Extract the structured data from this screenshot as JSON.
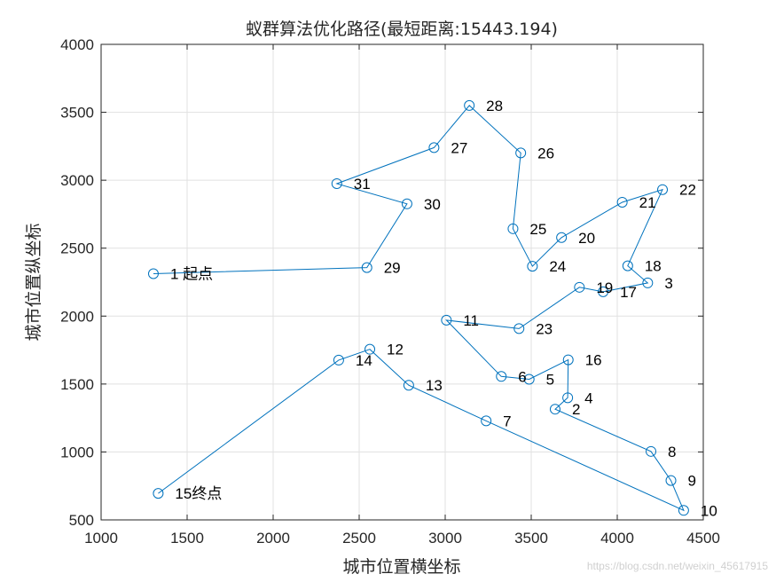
{
  "chart_data": {
    "type": "line",
    "title": "蚁群算法优化路径(最短距离:15443.194)",
    "xlabel": "城市位置横坐标",
    "ylabel": "城市位置纵坐标",
    "xlim": [
      1000,
      4500
    ],
    "ylim": [
      500,
      4000
    ],
    "xticks": [
      "1000",
      "1500",
      "2000",
      "2500",
      "3000",
      "3500",
      "4000",
      "4500"
    ],
    "yticks": [
      "500",
      "1000",
      "1500",
      "2000",
      "2500",
      "3000",
      "3500",
      "4000"
    ],
    "grid": true,
    "line_color": "#0072BD",
    "cities": [
      {
        "label": "1  起点",
        "x": 1304,
        "y": 2312
      },
      {
        "label": "2",
        "x": 3639,
        "y": 1315
      },
      {
        "label": "3",
        "x": 4177,
        "y": 2244
      },
      {
        "label": "4",
        "x": 3712,
        "y": 1399
      },
      {
        "label": "5",
        "x": 3488,
        "y": 1535
      },
      {
        "label": "6",
        "x": 3326,
        "y": 1556
      },
      {
        "label": "7",
        "x": 3238,
        "y": 1229
      },
      {
        "label": "8",
        "x": 4196,
        "y": 1004
      },
      {
        "label": "9",
        "x": 4312,
        "y": 790
      },
      {
        "label": "10",
        "x": 4386,
        "y": 570
      },
      {
        "label": "11",
        "x": 3007,
        "y": 1970
      },
      {
        "label": "12",
        "x": 2562,
        "y": 1756
      },
      {
        "label": "13",
        "x": 2788,
        "y": 1491
      },
      {
        "label": "14",
        "x": 2381,
        "y": 1676
      },
      {
        "label": "15终点",
        "x": 1332,
        "y": 695
      },
      {
        "label": "16",
        "x": 3715,
        "y": 1678
      },
      {
        "label": "17",
        "x": 3918,
        "y": 2179
      },
      {
        "label": "18",
        "x": 4061,
        "y": 2370
      },
      {
        "label": "19",
        "x": 3780,
        "y": 2212
      },
      {
        "label": "20",
        "x": 3676,
        "y": 2578
      },
      {
        "label": "21",
        "x": 4029,
        "y": 2838
      },
      {
        "label": "22",
        "x": 4263,
        "y": 2931
      },
      {
        "label": "23",
        "x": 3429,
        "y": 1908
      },
      {
        "label": "24",
        "x": 3507,
        "y": 2367
      },
      {
        "label": "25",
        "x": 3394,
        "y": 2643
      },
      {
        "label": "26",
        "x": 3439,
        "y": 3201
      },
      {
        "label": "27",
        "x": 2935,
        "y": 3240
      },
      {
        "label": "28",
        "x": 3140,
        "y": 3550
      },
      {
        "label": "29",
        "x": 2545,
        "y": 2357
      },
      {
        "label": "30",
        "x": 2778,
        "y": 2826
      },
      {
        "label": "31",
        "x": 2370,
        "y": 2975
      }
    ],
    "route": [
      1,
      29,
      30,
      31,
      27,
      28,
      26,
      25,
      24,
      20,
      21,
      22,
      18,
      3,
      17,
      19,
      23,
      11,
      6,
      5,
      16,
      4,
      2,
      8,
      9,
      10,
      7,
      13,
      12,
      14,
      15
    ]
  },
  "watermark": "https://blog.csdn.net/weixin_45617915"
}
